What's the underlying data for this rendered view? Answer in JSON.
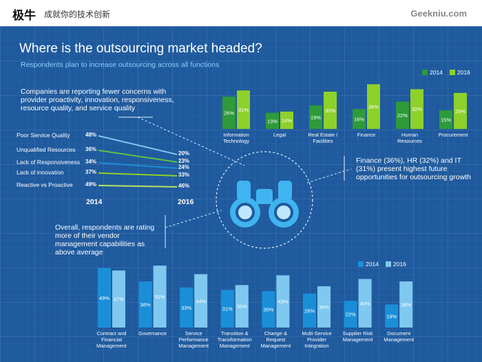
{
  "header": {
    "logo": "极牛",
    "slogan": "成就你的技术创新",
    "site": "Geekniu.com"
  },
  "title": "Where is the outsourcing market headed?",
  "subtitle": "Respondents plan to increase outsourcing across all functions",
  "note_concerns": "Companies are reporting fewer concerns with\nprovider proactivity, innovation, responsiveness,\nresource quality, and service quality",
  "note_finance": "Finance (36%), HR (32%) and IT\n(31%) present highest future\nopportunities for outsourcing growth",
  "note_vendor": "Overall, respondents are rating\nmore of their vendor\nmanagement capabilities as\nabove average",
  "colors": {
    "top_2014": "#2e9a3a",
    "top_2016": "#8ed12a",
    "bot_2014": "#1a8fd8",
    "bot_2016": "#7fc8ef"
  },
  "chart_data": [
    {
      "type": "bar",
      "categories": [
        "Information Technology",
        "Legal",
        "Real Estate / Facilities",
        "Finance",
        "Human Resources",
        "Procurement"
      ],
      "series": [
        {
          "name": "2014",
          "values": [
            26,
            13,
            19,
            16,
            22,
            15
          ],
          "labels": [
            "26%",
            "13%",
            "19%",
            "16%",
            "22%",
            "15%"
          ]
        },
        {
          "name": "2016",
          "values": [
            31,
            14,
            30,
            36,
            32,
            29
          ],
          "labels": [
            "31%",
            "14%",
            "30%",
            "36%",
            "32%",
            "29%"
          ]
        }
      ],
      "legend": "top-right"
    },
    {
      "type": "line",
      "x": [
        "2014",
        "2016"
      ],
      "x_labels": [
        "2014",
        "2016"
      ],
      "series": [
        {
          "name": "Poor Service Quality",
          "values": [
            48,
            20
          ],
          "labels": [
            "48%",
            "20%"
          ]
        },
        {
          "name": "Unqualified Resources",
          "values": [
            36,
            23
          ],
          "labels": [
            "36%",
            "23%"
          ]
        },
        {
          "name": "Lack of Responsiveness",
          "values": [
            34,
            24
          ],
          "labels": [
            "34%",
            "24%"
          ]
        },
        {
          "name": "Lack of innovation",
          "values": [
            37,
            33
          ],
          "labels": [
            "37%",
            "33%"
          ]
        },
        {
          "name": "Reactive vs Proactive",
          "values": [
            49,
            46
          ],
          "labels": [
            "49%",
            "46%"
          ]
        }
      ]
    },
    {
      "type": "bar",
      "categories": [
        "Contract and Financial Management",
        "Governance",
        "Service Performance Management",
        "Transition & Transformation Management",
        "Change & Request Management",
        "Multi-Service Provider Integration",
        "Supplier Risk Management",
        "Document Management"
      ],
      "series": [
        {
          "name": "2014",
          "values": [
            49,
            38,
            33,
            31,
            30,
            28,
            22,
            19
          ],
          "labels": [
            "49%",
            "38%",
            "33%",
            "31%",
            "30%",
            "28%",
            "22%",
            "19%"
          ]
        },
        {
          "name": "2016",
          "values": [
            47,
            51,
            44,
            35,
            43,
            34,
            40,
            38
          ],
          "labels": [
            "47%",
            "51%",
            "44%",
            "35%",
            "43%",
            "34%",
            "40%",
            "38%"
          ]
        }
      ],
      "legend": "top-right"
    }
  ],
  "top_x_labels": [
    "Information\nTechnology",
    "Legal",
    "Real Estate /\nFacilities",
    "Finance",
    "Human\nResources",
    "Procurement"
  ],
  "bottom_x_labels": [
    "Contract and\nFinancial\nManagement",
    "Governance",
    "Service\nPerformance\nManagement",
    "Transition &\nTransformation\nManagement",
    "Change &\nRequest\nManagement",
    "Multi-Service\nProvider\nIntegration",
    "Supplier Risk\nManagement",
    "Document\nManagement"
  ],
  "icon": "binoculars-icon"
}
